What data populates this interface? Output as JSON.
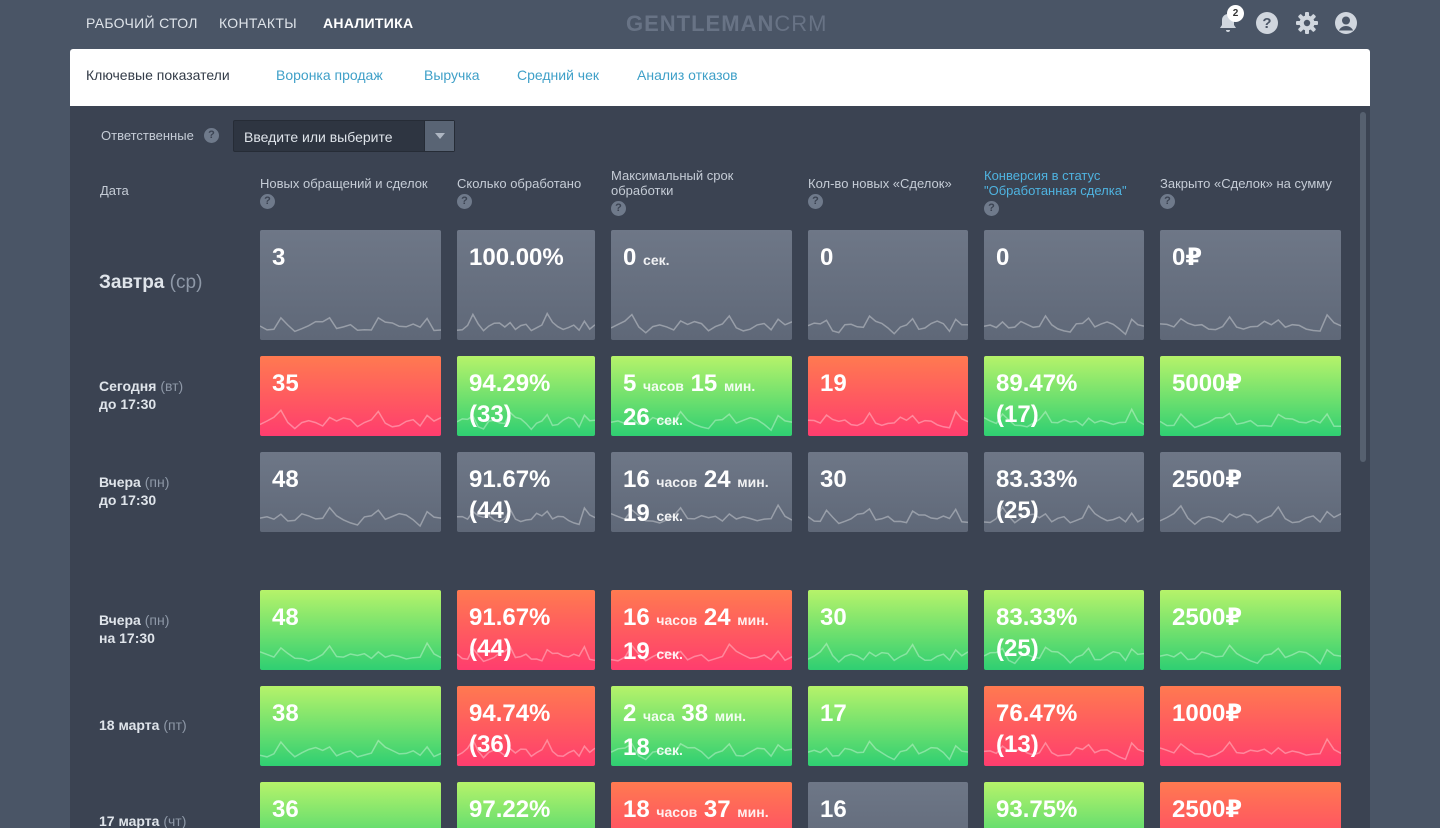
{
  "nav": {
    "items": [
      "РАБОЧИЙ СТОЛ",
      "КОНТАКТЫ",
      "АНАЛИТИКА"
    ],
    "active": "АНАЛИТИКА",
    "logo_bold": "GENTLEMAN",
    "logo_light": "CRM",
    "notification_count": "2",
    "icons": [
      "bell-icon",
      "help-icon",
      "gear-icon",
      "user-avatar-icon"
    ]
  },
  "tabs": [
    "Ключевые показатели",
    "Воронка продаж",
    "Выручка",
    "Средний чек",
    "Анализ отказов"
  ],
  "filter": {
    "label": "Ответственные",
    "placeholder": "Введите или выберите"
  },
  "table": {
    "date_header": "Дата",
    "columns": [
      "Новых обращений и сделок",
      "Сколько обработано",
      "Максимальный срок обработки",
      "Кол-во новых «Сделок»",
      "Конверсия в статус \"Обработанная сделка\"",
      "Закрыто «Сделок» на сумму"
    ],
    "rows": [
      {
        "label": "Завтра",
        "day": "(ср)",
        "sub": "",
        "cells": [
          {
            "color": "gray",
            "v": "3"
          },
          {
            "color": "gray",
            "v": "100.00%"
          },
          {
            "color": "gray",
            "v": "0",
            "u": "сек."
          },
          {
            "color": "gray",
            "v": "0"
          },
          {
            "color": "gray",
            "v": "0"
          },
          {
            "color": "gray",
            "v": "0₽"
          }
        ]
      },
      {
        "label": "Сегодня",
        "day": "(вт)",
        "sub": "до 17:30",
        "cells": [
          {
            "color": "red",
            "v": "35"
          },
          {
            "color": "green",
            "v": "94.29%",
            "v2": "(33)"
          },
          {
            "color": "green",
            "v": "5",
            "u": "часов",
            "v_b": "15",
            "u_b": "мин.",
            "v2": "26",
            "u2": "сек."
          },
          {
            "color": "red",
            "v": "19"
          },
          {
            "color": "green",
            "v": "89.47%",
            "v2": "(17)"
          },
          {
            "color": "green",
            "v": "5000₽"
          }
        ]
      },
      {
        "label": "Вчера",
        "day": "(пн)",
        "sub": "до 17:30",
        "cells": [
          {
            "color": "gray",
            "v": "48"
          },
          {
            "color": "gray",
            "v": "91.67%",
            "v2": "(44)"
          },
          {
            "color": "gray",
            "v": "16",
            "u": "часов",
            "v_b": "24",
            "u_b": "мин.",
            "v2": "19",
            "u2": "сек."
          },
          {
            "color": "gray",
            "v": "30"
          },
          {
            "color": "gray",
            "v": "83.33%",
            "v2": "(25)"
          },
          {
            "color": "gray",
            "v": "2500₽"
          }
        ]
      },
      {
        "label": "Вчера",
        "day": "(пн)",
        "sub": "на 17:30",
        "cells": [
          {
            "color": "green",
            "v": "48"
          },
          {
            "color": "red",
            "v": "91.67%",
            "v2": "(44)"
          },
          {
            "color": "red",
            "v": "16",
            "u": "часов",
            "v_b": "24",
            "u_b": "мин.",
            "v2": "19",
            "u2": "сек."
          },
          {
            "color": "green",
            "v": "30"
          },
          {
            "color": "green",
            "v": "83.33%",
            "v2": "(25)"
          },
          {
            "color": "green",
            "v": "2500₽"
          }
        ]
      },
      {
        "label": "18 марта",
        "day": "(пт)",
        "sub": "",
        "cells": [
          {
            "color": "green",
            "v": "38"
          },
          {
            "color": "red",
            "v": "94.74%",
            "v2": "(36)"
          },
          {
            "color": "green",
            "v": "2",
            "u": "часа",
            "v_b": "38",
            "u_b": "мин.",
            "v2": "18",
            "u2": "сек."
          },
          {
            "color": "green",
            "v": "17"
          },
          {
            "color": "red",
            "v": "76.47%",
            "v2": "(13)"
          },
          {
            "color": "red",
            "v": "1000₽"
          }
        ]
      },
      {
        "label": "17 марта",
        "day": "(чт)",
        "sub": "",
        "cells": [
          {
            "color": "green",
            "v": "36"
          },
          {
            "color": "green",
            "v": "97.22%"
          },
          {
            "color": "red",
            "v": "18",
            "u": "часов",
            "v_b": "37",
            "u_b": "мин."
          },
          {
            "color": "gray",
            "v": "16"
          },
          {
            "color": "green",
            "v": "93.75%"
          },
          {
            "color": "red",
            "v": "2500₽"
          }
        ]
      }
    ]
  },
  "colors": {
    "background": "#4a5566",
    "panel": "#3b4352",
    "accent": "#4fb3e0",
    "green": "#2fcf72",
    "red": "#ff3d6e",
    "gray": "#6e7787"
  }
}
